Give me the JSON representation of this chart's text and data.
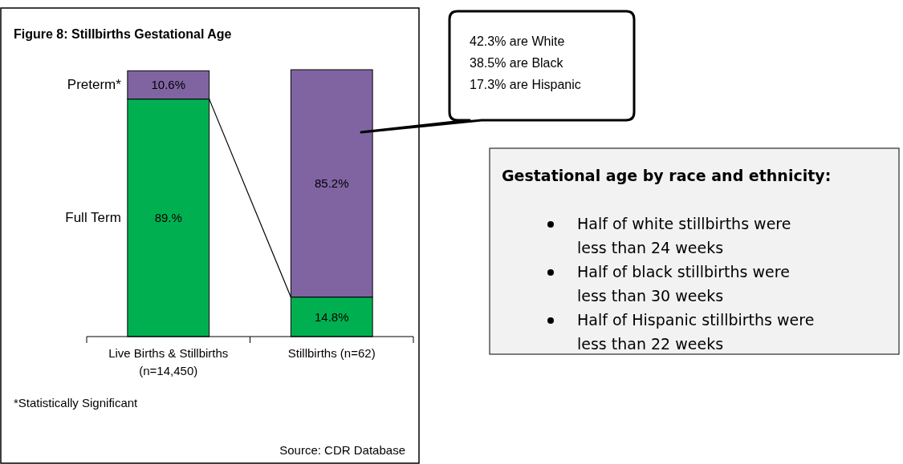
{
  "chart_data": {
    "type": "bar",
    "stacked": true,
    "title": "Figure 8: Stillbirths Gestational Age",
    "categories": [
      "Live Births & Stillbirths (n=14,450)",
      "Stillbirths (n=62)"
    ],
    "series": [
      {
        "name": "Full Term",
        "color": "#00b050",
        "values": [
          89,
          14.8
        ],
        "value_labels": [
          "89.%",
          "14.8%"
        ]
      },
      {
        "name": "Preterm*",
        "color": "#8064a2",
        "values": [
          10.6,
          85.2
        ],
        "value_labels": [
          "10.6%",
          "85.2%"
        ]
      }
    ],
    "ylim": [
      0,
      100
    ],
    "annotations": [
      "42.3% are White",
      "38.5% are Black",
      "17.3% are Hispanic",
      "Gestational age by race and ethnicity:",
      "Half of white stillbirths were less than 24 weeks",
      "Half of black stillbirths were less than 30 weeks",
      "Half of Hispanic stillbirths were less than 22 weeks",
      "*Statistically Significant",
      "Source: CDR Database"
    ]
  }
}
